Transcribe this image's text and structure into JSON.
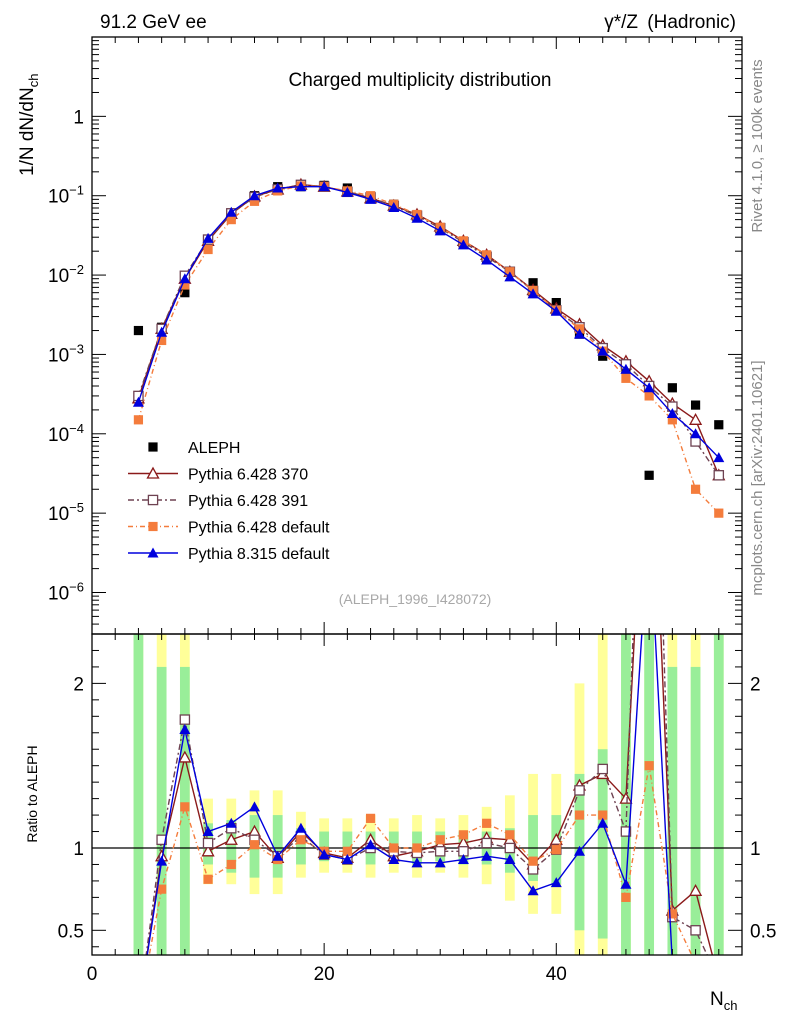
{
  "header": {
    "left": "91.2 GeV ee",
    "right_prefix": "γ*/Z",
    "right_suffix": "(Hadronic)"
  },
  "side": {
    "top": "Rivet 4.1.0, ≥ 100k events",
    "bottom": "mcplots.cern.ch [arXiv:2401.10621]"
  },
  "chart_data": {
    "type": "line",
    "title": "Charged multiplicity distribution",
    "analysis_id": "(ALEPH_1996_I428072)",
    "xlabel": "N",
    "xlabel_sub": "ch",
    "ylabel_main": "1/N  dN/dN",
    "ylabel_main_sub": "ch",
    "ylabel_ratio": "Ratio to ALEPH",
    "xlim": [
      0,
      56
    ],
    "ylim": [
      3e-07,
      10
    ],
    "yscale": "log",
    "ratio_ylim": [
      0.35,
      2.3
    ],
    "x_ticks": [
      "0",
      "20",
      "40"
    ],
    "y_ticks": [
      {
        "b": "1",
        "e": ""
      },
      {
        "b": "10",
        "e": "−1"
      },
      {
        "b": "10",
        "e": "−2"
      },
      {
        "b": "10",
        "e": "−3"
      },
      {
        "b": "10",
        "e": "−4"
      },
      {
        "b": "10",
        "e": "−5"
      },
      {
        "b": "10",
        "e": "−6"
      }
    ],
    "ratio_ticks": [
      "0.5",
      "1",
      "2"
    ],
    "x": [
      4,
      6,
      8,
      10,
      12,
      14,
      16,
      18,
      20,
      22,
      24,
      26,
      28,
      30,
      32,
      34,
      36,
      38,
      40,
      42,
      44,
      46,
      48,
      50,
      52,
      54
    ],
    "ratio_bands": {
      "x": [
        4,
        6,
        8,
        10,
        12,
        14,
        16,
        18,
        20,
        22,
        24,
        26,
        28,
        30,
        32,
        34,
        36,
        38,
        40,
        42,
        44,
        46,
        48,
        50,
        52,
        54
      ],
      "inner": [
        [
          0.35,
          2.3
        ],
        [
          0.35,
          2.1
        ],
        [
          0.35,
          2.1
        ],
        [
          0.9,
          1.15
        ],
        [
          0.85,
          1.17
        ],
        [
          0.82,
          1.2
        ],
        [
          0.82,
          1.2
        ],
        [
          0.9,
          1.12
        ],
        [
          0.92,
          1.1
        ],
        [
          0.92,
          1.1
        ],
        [
          0.9,
          1.1
        ],
        [
          0.92,
          1.1
        ],
        [
          0.9,
          1.1
        ],
        [
          0.92,
          1.1
        ],
        [
          0.9,
          1.1
        ],
        [
          0.9,
          1.1
        ],
        [
          0.85,
          1.12
        ],
        [
          0.8,
          1.2
        ],
        [
          0.78,
          1.2
        ],
        [
          0.5,
          1.45
        ],
        [
          0.45,
          1.6
        ],
        [
          0.35,
          2.3
        ],
        [
          0.35,
          2.3
        ],
        [
          0.35,
          2.1
        ],
        [
          0.35,
          2.1
        ],
        [
          0.35,
          2.3
        ]
      ],
      "outer": [
        [
          0.35,
          2.3
        ],
        [
          0.35,
          2.3
        ],
        [
          0.35,
          2.3
        ],
        [
          0.78,
          1.3
        ],
        [
          0.78,
          1.3
        ],
        [
          0.72,
          1.35
        ],
        [
          0.72,
          1.35
        ],
        [
          0.82,
          1.22
        ],
        [
          0.85,
          1.18
        ],
        [
          0.85,
          1.18
        ],
        [
          0.82,
          1.2
        ],
        [
          0.85,
          1.18
        ],
        [
          0.82,
          1.2
        ],
        [
          0.85,
          1.18
        ],
        [
          0.82,
          1.2
        ],
        [
          0.78,
          1.25
        ],
        [
          0.68,
          1.32
        ],
        [
          0.6,
          1.45
        ],
        [
          0.6,
          1.45
        ],
        [
          0.35,
          2.0
        ],
        [
          0.35,
          2.3
        ],
        [
          0.35,
          2.3
        ],
        [
          0.35,
          2.3
        ],
        [
          0.35,
          2.3
        ],
        [
          0.35,
          2.3
        ],
        [
          0.35,
          2.3
        ]
      ]
    },
    "series": [
      {
        "name": "ALEPH",
        "color": "#000000",
        "marker": "square-filled",
        "dash": "",
        "x": [
          4,
          6,
          8,
          10,
          12,
          14,
          16,
          18,
          20,
          22,
          24,
          26,
          28,
          30,
          32,
          34,
          36,
          38,
          40,
          42,
          44,
          46,
          48,
          50,
          52,
          54
        ],
        "y": [
          0.002,
          0.0022,
          0.006,
          0.027,
          0.057,
          0.1,
          0.13,
          0.13,
          0.135,
          0.125,
          0.098,
          0.078,
          0.057,
          0.039,
          0.026,
          0.016,
          0.011,
          0.008,
          0.0045,
          0.0018,
          0.00095,
          0.00065,
          3e-05,
          0.00038,
          0.00023,
          0.00013
        ],
        "ratio": []
      },
      {
        "name": "Pythia 6.428 370",
        "color": "#8b1a1a",
        "marker": "triangle-open",
        "dash": "",
        "x": [
          4,
          6,
          8,
          10,
          12,
          14,
          16,
          18,
          20,
          22,
          24,
          26,
          28,
          30,
          32,
          34,
          36,
          38,
          40,
          42,
          44,
          46,
          48,
          50,
          52,
          54
        ],
        "y": [
          0.00028,
          0.0021,
          0.009,
          0.027,
          0.059,
          0.098,
          0.12,
          0.138,
          0.13,
          0.113,
          0.093,
          0.075,
          0.058,
          0.041,
          0.027,
          0.018,
          0.011,
          0.0065,
          0.0038,
          0.0024,
          0.0013,
          0.00082,
          0.00046,
          0.00024,
          0.00015,
          3e-05
        ],
        "ratio": [
          0.0,
          0.95,
          1.55,
          0.98,
          1.05,
          1.1,
          0.94,
          1.1,
          0.97,
          0.94,
          1.05,
          0.95,
          0.98,
          1.02,
          1.03,
          1.06,
          1.05,
          0.9,
          1.05,
          1.38,
          1.45,
          1.3,
          4.0,
          0.62,
          0.74,
          0.2
        ]
      },
      {
        "name": "Pythia 6.428 391",
        "color": "#6e4252",
        "marker": "square-open",
        "dash": "6 3 2 3",
        "x": [
          4,
          6,
          8,
          10,
          12,
          14,
          16,
          18,
          20,
          22,
          24,
          26,
          28,
          30,
          32,
          34,
          36,
          38,
          40,
          42,
          44,
          46,
          48,
          50,
          52,
          54
        ],
        "y": [
          0.0003,
          0.0021,
          0.0098,
          0.028,
          0.06,
          0.096,
          0.12,
          0.137,
          0.13,
          0.112,
          0.095,
          0.074,
          0.056,
          0.039,
          0.026,
          0.017,
          0.011,
          0.0063,
          0.0036,
          0.0022,
          0.0012,
          0.00075,
          0.0004,
          0.00022,
          8e-05,
          3e-05
        ],
        "ratio": [
          0.0,
          1.05,
          1.78,
          1.03,
          1.12,
          1.05,
          0.95,
          1.07,
          0.96,
          0.93,
          1.0,
          0.98,
          0.97,
          0.98,
          0.98,
          1.03,
          1.0,
          0.87,
          0.99,
          1.35,
          1.48,
          1.1,
          5.0,
          0.58,
          0.5,
          0.2
        ]
      },
      {
        "name": "Pythia 6.428 default",
        "color": "#f47c3c",
        "marker": "square-filled",
        "dash": "5 3 1 3",
        "x": [
          4,
          6,
          8,
          10,
          12,
          14,
          16,
          18,
          20,
          22,
          24,
          26,
          28,
          30,
          32,
          34,
          36,
          38,
          40,
          42,
          44,
          46,
          48,
          50,
          52,
          54
        ],
        "y": [
          0.00015,
          0.0015,
          0.0075,
          0.021,
          0.05,
          0.085,
          0.115,
          0.133,
          0.13,
          0.115,
          0.1,
          0.078,
          0.058,
          0.04,
          0.027,
          0.018,
          0.011,
          0.0064,
          0.0036,
          0.0021,
          0.0011,
          0.0005,
          0.0003,
          0.00015,
          2e-05,
          1e-05
        ],
        "ratio": [
          0.0,
          0.75,
          1.25,
          0.81,
          0.9,
          1.02,
          0.93,
          1.05,
          0.98,
          0.98,
          1.18,
          1.0,
          1.0,
          1.05,
          1.08,
          1.15,
          1.08,
          0.92,
          0.99,
          1.2,
          1.2,
          0.7,
          1.5,
          0.6,
          0.3,
          0.3
        ]
      },
      {
        "name": "Pythia 8.315 default",
        "color": "#0000dd",
        "marker": "triangle-filled",
        "dash": "",
        "x": [
          4,
          6,
          8,
          10,
          12,
          14,
          16,
          18,
          20,
          22,
          24,
          26,
          28,
          30,
          32,
          34,
          36,
          38,
          40,
          42,
          44,
          46,
          48,
          50,
          52,
          54
        ],
        "y": [
          0.00025,
          0.0019,
          0.009,
          0.029,
          0.062,
          0.1,
          0.125,
          0.13,
          0.13,
          0.11,
          0.09,
          0.071,
          0.052,
          0.036,
          0.024,
          0.0155,
          0.0095,
          0.0058,
          0.0035,
          0.0018,
          0.0011,
          0.00065,
          0.00038,
          0.00018,
          0.0001,
          5e-05
        ],
        "ratio": [
          0.0,
          0.92,
          1.72,
          1.1,
          1.15,
          1.25,
          0.95,
          1.12,
          0.96,
          0.93,
          1.02,
          0.93,
          0.91,
          0.91,
          0.93,
          0.95,
          0.93,
          0.74,
          0.79,
          0.98,
          1.15,
          0.78,
          3.0,
          0.3,
          0.2,
          0.2
        ]
      }
    ]
  }
}
